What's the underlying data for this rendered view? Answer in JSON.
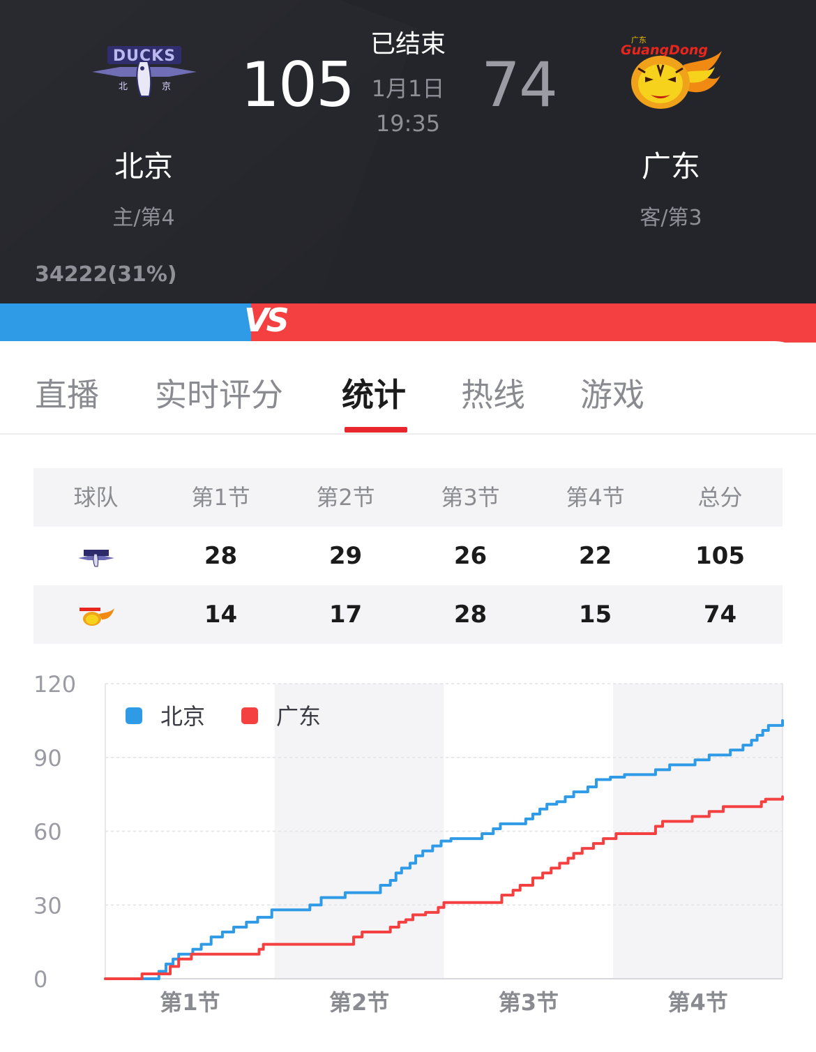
{
  "game": {
    "status": "已结束",
    "date": "1月1日",
    "time": "19:35"
  },
  "home": {
    "name": "北京",
    "rank": "主/第4",
    "score": "105",
    "logo_text": "DUCKS",
    "votes": "34222(31%)",
    "color": "#2f9be6"
  },
  "away": {
    "name": "广东",
    "rank": "客/第3",
    "score": "74",
    "logo_text": "GuangDong",
    "color": "#f44040"
  },
  "vs_label": "VS",
  "tabs": [
    {
      "label": "直播",
      "active": false
    },
    {
      "label": "实时评分",
      "active": false
    },
    {
      "label": "统计",
      "active": true
    },
    {
      "label": "热线",
      "active": false
    },
    {
      "label": "游戏",
      "active": false
    }
  ],
  "score_table": {
    "headers": [
      "球队",
      "第1节",
      "第2节",
      "第3节",
      "第4节",
      "总分"
    ],
    "rows": [
      {
        "team": "北京",
        "values": [
          "28",
          "29",
          "26",
          "22",
          "105"
        ]
      },
      {
        "team": "广东",
        "values": [
          "14",
          "17",
          "28",
          "15",
          "74"
        ]
      }
    ]
  },
  "chart_data": {
    "type": "line",
    "step": true,
    "x_unit": "minutes",
    "xlim": [
      0,
      48
    ],
    "ylim": [
      0,
      120
    ],
    "yticks": [
      0,
      30,
      60,
      90,
      120
    ],
    "categories": [
      "第1节",
      "第2节",
      "第3节",
      "第4节"
    ],
    "legend_position": "top-left",
    "shaded_periods": [
      "第2节",
      "第4节"
    ],
    "series": [
      {
        "name": "北京",
        "color": "#2f9be6",
        "points": [
          [
            0,
            0
          ],
          [
            3.5,
            0
          ],
          [
            3.8,
            3
          ],
          [
            4.3,
            6
          ],
          [
            4.8,
            8
          ],
          [
            5.2,
            10
          ],
          [
            6.2,
            12
          ],
          [
            6.8,
            14
          ],
          [
            7.5,
            17
          ],
          [
            8.3,
            19
          ],
          [
            9.1,
            21
          ],
          [
            10,
            23
          ],
          [
            10.8,
            25
          ],
          [
            11.8,
            28
          ],
          [
            13.5,
            28
          ],
          [
            14.5,
            30
          ],
          [
            15.3,
            33
          ],
          [
            17,
            35
          ],
          [
            19,
            35
          ],
          [
            19.5,
            38
          ],
          [
            20.2,
            40
          ],
          [
            20.6,
            43
          ],
          [
            21,
            45
          ],
          [
            21.6,
            47
          ],
          [
            22,
            50
          ],
          [
            22.5,
            52
          ],
          [
            23.2,
            54
          ],
          [
            23.8,
            56
          ],
          [
            24.5,
            57
          ],
          [
            26.2,
            57
          ],
          [
            26.7,
            59
          ],
          [
            27.5,
            61
          ],
          [
            28,
            63
          ],
          [
            29.8,
            65
          ],
          [
            30.3,
            67
          ],
          [
            30.8,
            69
          ],
          [
            31.3,
            71
          ],
          [
            32,
            72
          ],
          [
            32.6,
            74
          ],
          [
            33.2,
            76
          ],
          [
            34.2,
            78
          ],
          [
            34.8,
            81
          ],
          [
            35.8,
            82
          ],
          [
            36.2,
            82
          ],
          [
            36.8,
            83
          ],
          [
            38.8,
            83
          ],
          [
            39,
            85
          ],
          [
            40,
            87
          ],
          [
            41.8,
            89
          ],
          [
            42.8,
            91
          ],
          [
            44.3,
            93
          ],
          [
            45.2,
            95
          ],
          [
            45.8,
            97
          ],
          [
            46.2,
            99
          ],
          [
            46.6,
            101
          ],
          [
            47,
            103
          ],
          [
            48,
            105
          ]
        ]
      },
      {
        "name": "广东",
        "color": "#f44040",
        "points": [
          [
            0,
            0
          ],
          [
            2.5,
            0
          ],
          [
            2.6,
            2
          ],
          [
            4.2,
            2
          ],
          [
            4.6,
            5
          ],
          [
            5.2,
            8
          ],
          [
            6.1,
            10
          ],
          [
            10.5,
            10
          ],
          [
            10.9,
            12
          ],
          [
            11.2,
            14
          ],
          [
            17.2,
            14
          ],
          [
            17.6,
            17
          ],
          [
            18.2,
            19
          ],
          [
            19.8,
            19
          ],
          [
            20.2,
            21
          ],
          [
            20.8,
            23
          ],
          [
            21.3,
            24
          ],
          [
            21.8,
            26
          ],
          [
            22.7,
            27
          ],
          [
            23.6,
            29
          ],
          [
            24,
            31
          ],
          [
            27.6,
            31
          ],
          [
            28.1,
            34
          ],
          [
            28.9,
            36
          ],
          [
            29.4,
            38
          ],
          [
            30.3,
            41
          ],
          [
            31,
            43
          ],
          [
            31.6,
            45
          ],
          [
            32.2,
            47
          ],
          [
            32.8,
            49
          ],
          [
            33.2,
            51
          ],
          [
            33.8,
            53
          ],
          [
            34.6,
            55
          ],
          [
            35.3,
            57
          ],
          [
            36.2,
            59
          ],
          [
            38.8,
            59
          ],
          [
            39,
            62
          ],
          [
            39.5,
            64
          ],
          [
            41.6,
            66
          ],
          [
            42.8,
            68
          ],
          [
            43.8,
            70
          ],
          [
            46.2,
            70
          ],
          [
            46.5,
            72
          ],
          [
            46.8,
            73
          ],
          [
            48,
            74
          ]
        ]
      }
    ]
  }
}
